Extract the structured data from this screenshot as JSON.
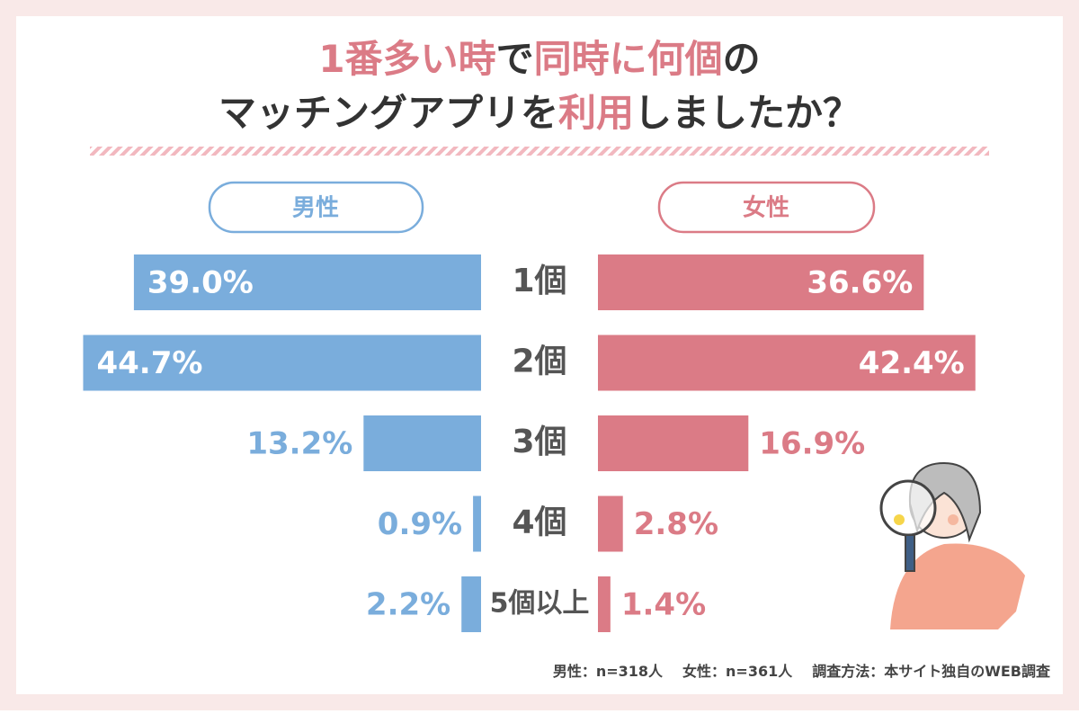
{
  "chart_data": {
    "type": "butterfly-bar",
    "title_lines": [
      [
        {
          "text": "1番多い時",
          "highlight": true
        },
        {
          "text": "で",
          "highlight": false
        },
        {
          "text": "同時に何個",
          "highlight": true
        },
        {
          "text": "の",
          "highlight": false
        }
      ],
      [
        {
          "text": "マッチングアプリを",
          "highlight": false
        },
        {
          "text": "利用",
          "highlight": true
        },
        {
          "text": "しましたか？",
          "highlight": false
        }
      ]
    ],
    "categories": [
      "1個",
      "2個",
      "3個",
      "4個",
      "5個以上"
    ],
    "series": [
      {
        "name": "男性",
        "color": "#7aaddc",
        "values": [
          39.0,
          44.7,
          13.2,
          0.9,
          2.2
        ],
        "value_labels": [
          "39.0%",
          "44.7%",
          "13.2%",
          "0.9%",
          "2.2%"
        ]
      },
      {
        "name": "女性",
        "color": "#db7b86",
        "values": [
          36.6,
          42.4,
          16.9,
          2.8,
          1.4
        ],
        "value_labels": [
          "36.6%",
          "42.4%",
          "16.9%",
          "2.8%",
          "1.4%"
        ]
      }
    ],
    "notes": [
      "男性：n=318人",
      "女性：n=361人",
      "調査方法：本サイト独自のWEB調査"
    ]
  }
}
